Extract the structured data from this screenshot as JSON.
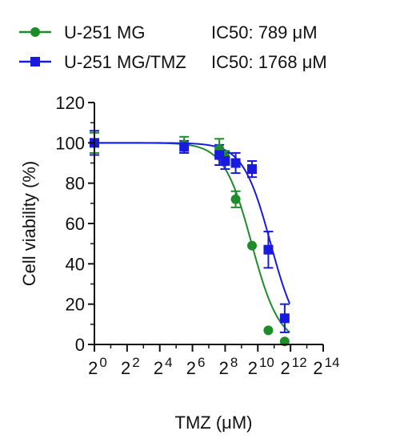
{
  "chart_data": {
    "type": "scatter",
    "xscale": "log2",
    "xlabel": "TMZ (μM)",
    "ylabel": "Cell viability (%)",
    "xlim": [
      1,
      16384
    ],
    "ylim": [
      0,
      120
    ],
    "x_tick_base": "2",
    "x_tick_exponents": [
      "0",
      "2",
      "4",
      "6",
      "8",
      "10",
      "12",
      "14"
    ],
    "y_ticks": [
      "0",
      "20",
      "40",
      "60",
      "80",
      "100",
      "120"
    ],
    "grid": false,
    "legend_position": "top-left",
    "series": [
      {
        "name": "U-251 MG",
        "ic50_label": "IC50: 789 μM",
        "ic50": 789,
        "color": "#1f8c2a",
        "marker": "circle",
        "points": [
          {
            "x": 1,
            "y": 100,
            "err": 5
          },
          {
            "x": 45,
            "y": 99,
            "err": 4
          },
          {
            "x": 200,
            "y": 97,
            "err": 5
          },
          {
            "x": 256,
            "y": 93,
            "err": 3
          },
          {
            "x": 400,
            "y": 72,
            "err": 4
          },
          {
            "x": 800,
            "y": 49,
            "err": 0
          },
          {
            "x": 1600,
            "y": 7,
            "err": 0
          },
          {
            "x": 3200,
            "y": 1.5,
            "err": 0
          }
        ]
      },
      {
        "name": "U-251 MG/TMZ",
        "ic50_label": "IC50: 1768 μM",
        "ic50": 1768,
        "color": "#1a1adf",
        "marker": "square",
        "points": [
          {
            "x": 1,
            "y": 100,
            "err": 6
          },
          {
            "x": 45,
            "y": 98,
            "err": 3
          },
          {
            "x": 200,
            "y": 94,
            "err": 5
          },
          {
            "x": 256,
            "y": 91,
            "err": 4
          },
          {
            "x": 400,
            "y": 90,
            "err": 5
          },
          {
            "x": 800,
            "y": 87,
            "err": 4
          },
          {
            "x": 1600,
            "y": 47,
            "err": 9
          },
          {
            "x": 3200,
            "y": 13,
            "err": 7
          }
        ]
      }
    ]
  }
}
